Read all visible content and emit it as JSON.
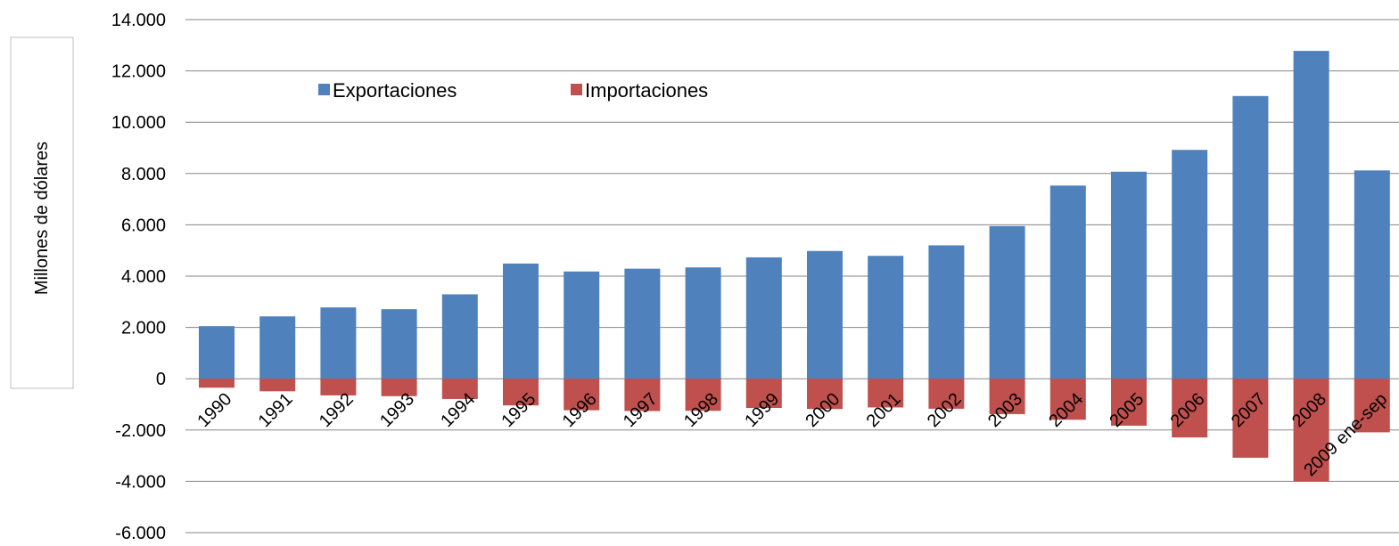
{
  "chart_data": {
    "type": "bar",
    "stacked": "diverging",
    "title": "",
    "xlabel": "",
    "ylabel": "Millones de dólares",
    "ylim": [
      -6000,
      14000
    ],
    "y_tick_step": 2000,
    "y_tick_labels": [
      "-6.000",
      "-4.000",
      "-2.000",
      "0",
      "2.000",
      "4.000",
      "6.000",
      "8.000",
      "10.000",
      "12.000",
      "14.000"
    ],
    "grid": true,
    "legend_position": "top-left",
    "categories": [
      "1990",
      "1991",
      "1992",
      "1993",
      "1994",
      "1995",
      "1996",
      "1997",
      "1998",
      "1999",
      "2000",
      "2001",
      "2002",
      "2003",
      "2004",
      "2005",
      "2006",
      "2007",
      "2008",
      "2009 ene-sep"
    ],
    "series": [
      {
        "name": "Exportaciones",
        "color": "#4F81BD",
        "values": [
          2050,
          2430,
          2780,
          2710,
          3290,
          4490,
          4180,
          4290,
          4340,
          4730,
          4980,
          4790,
          5200,
          5950,
          7530,
          8070,
          8920,
          11020,
          12780,
          8120
        ]
      },
      {
        "name": "Importaciones",
        "color": "#C0504D",
        "values": [
          -350,
          -490,
          -650,
          -680,
          -790,
          -1040,
          -1230,
          -1260,
          -1250,
          -1140,
          -1180,
          -1120,
          -1170,
          -1380,
          -1600,
          -1830,
          -2290,
          -3080,
          -4010,
          -2090
        ]
      }
    ]
  }
}
